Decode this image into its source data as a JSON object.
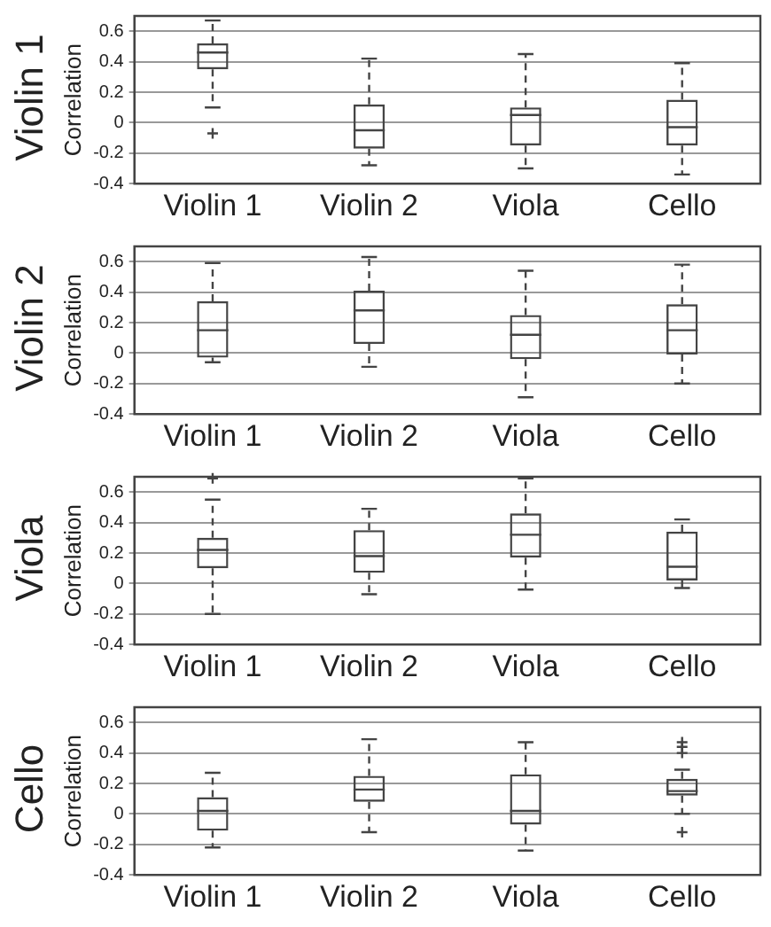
{
  "chart_data": [
    {
      "type": "box",
      "title": "Violin 1",
      "ylabel": "Correlation",
      "categories": [
        "Violin 1",
        "Violin 2",
        "Viola",
        "Cello"
      ],
      "ylim": [
        -0.4,
        0.7
      ],
      "yticks": [
        -0.4,
        -0.2,
        0,
        0.2,
        0.4,
        0.6
      ],
      "grid": "y",
      "boxes": [
        {
          "low": 0.1,
          "q1": 0.35,
          "median": 0.46,
          "q3": 0.52,
          "high": 0.67,
          "outliers": [
            -0.07
          ]
        },
        {
          "low": -0.28,
          "q1": -0.17,
          "median": -0.05,
          "q3": 0.12,
          "high": 0.42
        },
        {
          "low": -0.3,
          "q1": -0.15,
          "median": 0.05,
          "q3": 0.1,
          "high": 0.45
        },
        {
          "low": -0.34,
          "q1": -0.15,
          "median": -0.03,
          "q3": 0.15,
          "high": 0.39
        }
      ]
    },
    {
      "type": "box",
      "title": "Violin 2",
      "ylabel": "Correlation",
      "categories": [
        "Violin 1",
        "Violin 2",
        "Viola",
        "Cello"
      ],
      "ylim": [
        -0.4,
        0.7
      ],
      "yticks": [
        -0.4,
        -0.2,
        0,
        0.2,
        0.4,
        0.6
      ],
      "grid": "y",
      "boxes": [
        {
          "low": -0.06,
          "q1": -0.03,
          "median": 0.15,
          "q3": 0.34,
          "high": 0.59
        },
        {
          "low": -0.09,
          "q1": 0.06,
          "median": 0.28,
          "q3": 0.41,
          "high": 0.63
        },
        {
          "low": -0.29,
          "q1": -0.04,
          "median": 0.12,
          "q3": 0.25,
          "high": 0.54
        },
        {
          "low": -0.2,
          "q1": -0.01,
          "median": 0.15,
          "q3": 0.32,
          "high": 0.58
        }
      ]
    },
    {
      "type": "box",
      "title": "Viola",
      "ylabel": "Correlation",
      "categories": [
        "Violin 1",
        "Violin 2",
        "Viola",
        "Cello"
      ],
      "ylim": [
        -0.4,
        0.7
      ],
      "yticks": [
        -0.4,
        -0.2,
        0,
        0.2,
        0.4,
        0.6
      ],
      "grid": "y",
      "boxes": [
        {
          "low": -0.2,
          "q1": 0.1,
          "median": 0.22,
          "q3": 0.3,
          "high": 0.55,
          "outliers": [
            0.69
          ]
        },
        {
          "low": -0.07,
          "q1": 0.07,
          "median": 0.18,
          "q3": 0.35,
          "high": 0.49
        },
        {
          "low": -0.04,
          "q1": 0.17,
          "median": 0.32,
          "q3": 0.46,
          "high": 0.69
        },
        {
          "low": -0.03,
          "q1": 0.02,
          "median": 0.11,
          "q3": 0.34,
          "high": 0.42
        }
      ]
    },
    {
      "type": "box",
      "title": "Cello",
      "ylabel": "Correlation",
      "categories": [
        "Violin 1",
        "Violin 2",
        "Viola",
        "Cello"
      ],
      "ylim": [
        -0.4,
        0.7
      ],
      "yticks": [
        -0.4,
        -0.2,
        0,
        0.2,
        0.4,
        0.6
      ],
      "grid": "y",
      "boxes": [
        {
          "low": -0.22,
          "q1": -0.11,
          "median": 0.02,
          "q3": 0.11,
          "high": 0.27
        },
        {
          "low": -0.12,
          "q1": 0.08,
          "median": 0.16,
          "q3": 0.25,
          "high": 0.49
        },
        {
          "low": -0.24,
          "q1": -0.07,
          "median": 0.02,
          "q3": 0.26,
          "high": 0.47
        },
        {
          "low": 0.0,
          "q1": 0.12,
          "median": 0.15,
          "q3": 0.23,
          "high": 0.29,
          "outliers": [
            0.47,
            0.44,
            0.4,
            -0.12
          ]
        }
      ]
    }
  ]
}
